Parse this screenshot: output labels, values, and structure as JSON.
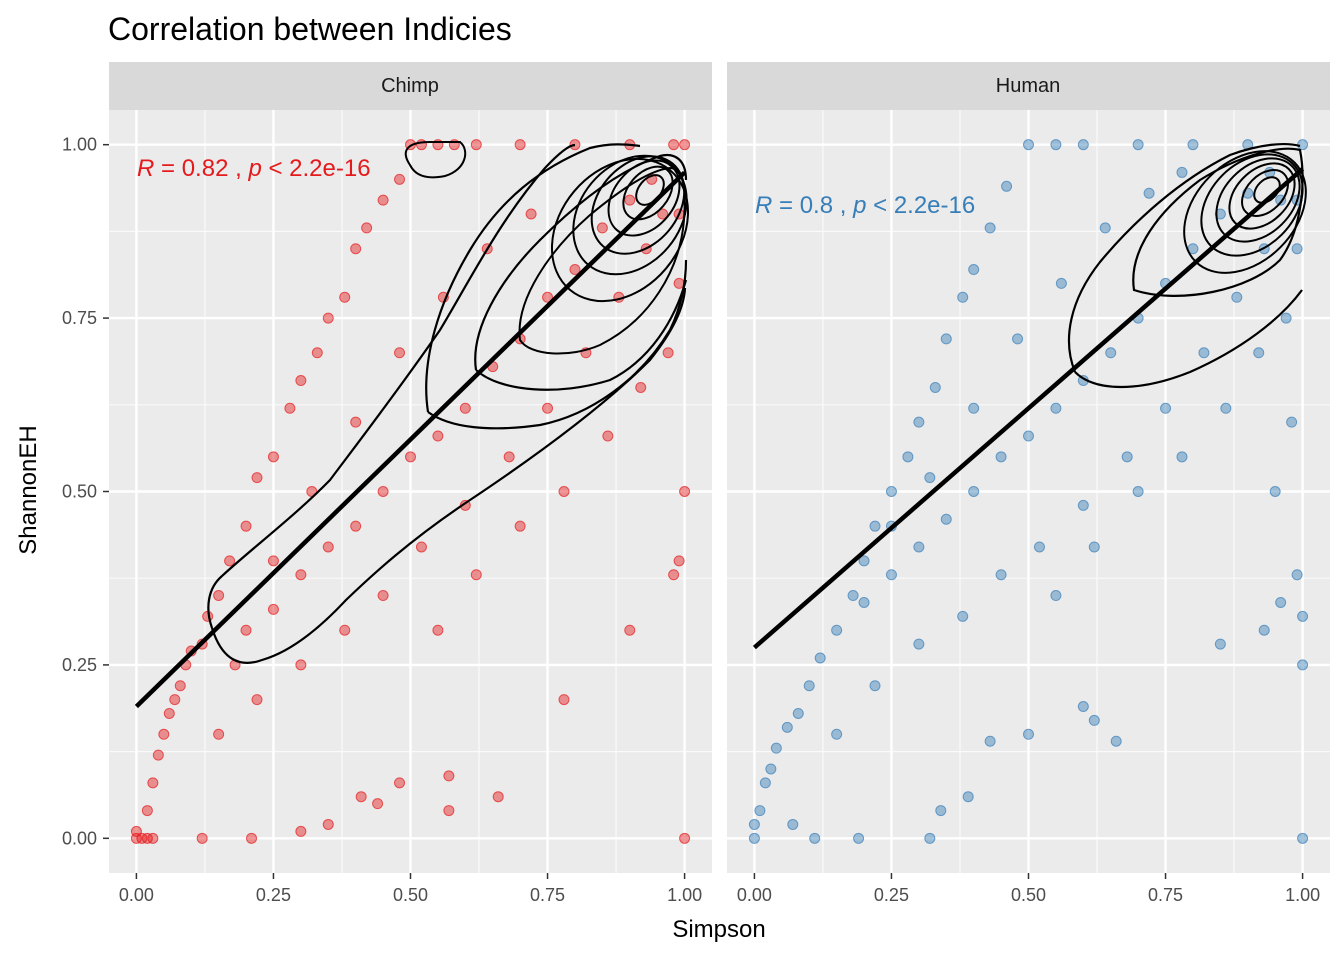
{
  "chart_data": {
    "type": "scatter",
    "title": "Correlation between Indicies",
    "xlabel": "Simpson",
    "ylabel": "ShannonEH",
    "xlim": [
      -0.05,
      1.05
    ],
    "ylim": [
      -0.05,
      1.05
    ],
    "xticks": [
      "0.00",
      "0.25",
      "0.50",
      "0.75",
      "1.00"
    ],
    "yticks": [
      "0.00",
      "0.25",
      "0.50",
      "0.75",
      "1.00"
    ],
    "grid": true,
    "facets": [
      {
        "name": "Chimp",
        "color": "#e41a1c",
        "stat_label": {
          "r_value": "0.82",
          "p_value": "2.2e-16"
        },
        "regression": {
          "intercept": 0.19,
          "slope": 0.77
        },
        "points": [
          [
            0.0,
            0.0
          ],
          [
            0.01,
            0.0
          ],
          [
            0.02,
            0.0
          ],
          [
            0.03,
            0.0
          ],
          [
            0.0,
            0.01
          ],
          [
            0.02,
            0.04
          ],
          [
            0.03,
            0.08
          ],
          [
            0.04,
            0.12
          ],
          [
            0.05,
            0.15
          ],
          [
            0.06,
            0.18
          ],
          [
            0.07,
            0.2
          ],
          [
            0.08,
            0.22
          ],
          [
            0.09,
            0.25
          ],
          [
            0.1,
            0.27
          ],
          [
            0.12,
            0.28
          ],
          [
            0.13,
            0.32
          ],
          [
            0.15,
            0.35
          ],
          [
            0.17,
            0.4
          ],
          [
            0.2,
            0.45
          ],
          [
            0.22,
            0.52
          ],
          [
            0.25,
            0.55
          ],
          [
            0.28,
            0.62
          ],
          [
            0.3,
            0.66
          ],
          [
            0.33,
            0.7
          ],
          [
            0.35,
            0.75
          ],
          [
            0.38,
            0.78
          ],
          [
            0.4,
            0.85
          ],
          [
            0.42,
            0.88
          ],
          [
            0.45,
            0.92
          ],
          [
            0.48,
            0.95
          ],
          [
            0.5,
            1.0
          ],
          [
            0.52,
            1.0
          ],
          [
            0.55,
            1.0
          ],
          [
            0.58,
            1.0
          ],
          [
            0.62,
            1.0
          ],
          [
            0.7,
            1.0
          ],
          [
            0.8,
            1.0
          ],
          [
            0.9,
            1.0
          ],
          [
            0.98,
            1.0
          ],
          [
            1.0,
            1.0
          ],
          [
            1.0,
            0.0
          ],
          [
            1.0,
            0.5
          ],
          [
            0.99,
            0.4
          ],
          [
            0.98,
            0.38
          ],
          [
            0.9,
            0.3
          ],
          [
            0.78,
            0.2
          ],
          [
            0.66,
            0.06
          ],
          [
            0.57,
            0.04
          ],
          [
            0.57,
            0.09
          ],
          [
            0.48,
            0.08
          ],
          [
            0.44,
            0.05
          ],
          [
            0.41,
            0.06
          ],
          [
            0.35,
            0.02
          ],
          [
            0.3,
            0.01
          ],
          [
            0.21,
            0.0
          ],
          [
            0.12,
            0.0
          ],
          [
            0.15,
            0.15
          ],
          [
            0.22,
            0.2
          ],
          [
            0.3,
            0.25
          ],
          [
            0.38,
            0.3
          ],
          [
            0.45,
            0.35
          ],
          [
            0.52,
            0.42
          ],
          [
            0.6,
            0.48
          ],
          [
            0.68,
            0.55
          ],
          [
            0.75,
            0.62
          ],
          [
            0.82,
            0.7
          ],
          [
            0.88,
            0.78
          ],
          [
            0.93,
            0.85
          ],
          [
            0.96,
            0.9
          ],
          [
            0.94,
            0.95
          ],
          [
            0.9,
            0.92
          ],
          [
            0.85,
            0.88
          ],
          [
            0.8,
            0.82
          ],
          [
            0.75,
            0.78
          ],
          [
            0.7,
            0.72
          ],
          [
            0.65,
            0.68
          ],
          [
            0.6,
            0.62
          ],
          [
            0.55,
            0.58
          ],
          [
            0.5,
            0.55
          ],
          [
            0.45,
            0.5
          ],
          [
            0.4,
            0.45
          ],
          [
            0.35,
            0.42
          ],
          [
            0.3,
            0.38
          ],
          [
            0.25,
            0.33
          ],
          [
            0.2,
            0.3
          ],
          [
            0.18,
            0.25
          ],
          [
            0.25,
            0.4
          ],
          [
            0.32,
            0.5
          ],
          [
            0.4,
            0.6
          ],
          [
            0.48,
            0.7
          ],
          [
            0.56,
            0.78
          ],
          [
            0.64,
            0.85
          ],
          [
            0.72,
            0.9
          ],
          [
            0.55,
            0.3
          ],
          [
            0.62,
            0.38
          ],
          [
            0.7,
            0.45
          ],
          [
            0.78,
            0.5
          ],
          [
            0.86,
            0.58
          ],
          [
            0.92,
            0.65
          ],
          [
            0.97,
            0.7
          ],
          [
            0.99,
            0.8
          ],
          [
            0.99,
            0.9
          ]
        ]
      },
      {
        "name": "Human",
        "color": "#377eb8",
        "stat_label": {
          "r_value": "0.8",
          "p_value": "2.2e-16"
        },
        "regression": {
          "intercept": 0.275,
          "slope": 0.69
        },
        "points": [
          [
            0.0,
            0.0
          ],
          [
            0.0,
            0.02
          ],
          [
            0.01,
            0.04
          ],
          [
            0.02,
            0.08
          ],
          [
            0.03,
            0.1
          ],
          [
            0.04,
            0.13
          ],
          [
            0.06,
            0.16
          ],
          [
            0.08,
            0.18
          ],
          [
            0.1,
            0.22
          ],
          [
            0.12,
            0.26
          ],
          [
            0.15,
            0.3
          ],
          [
            0.18,
            0.35
          ],
          [
            0.2,
            0.4
          ],
          [
            0.22,
            0.45
          ],
          [
            0.25,
            0.5
          ],
          [
            0.28,
            0.55
          ],
          [
            0.3,
            0.6
          ],
          [
            0.33,
            0.65
          ],
          [
            0.35,
            0.72
          ],
          [
            0.38,
            0.78
          ],
          [
            0.4,
            0.82
          ],
          [
            0.43,
            0.88
          ],
          [
            0.46,
            0.94
          ],
          [
            0.5,
            1.0
          ],
          [
            0.55,
            1.0
          ],
          [
            0.6,
            1.0
          ],
          [
            0.7,
            1.0
          ],
          [
            0.8,
            1.0
          ],
          [
            0.9,
            1.0
          ],
          [
            1.0,
            1.0
          ],
          [
            1.0,
            0.0
          ],
          [
            1.0,
            0.25
          ],
          [
            1.0,
            0.32
          ],
          [
            0.99,
            0.38
          ],
          [
            0.96,
            0.34
          ],
          [
            0.93,
            0.3
          ],
          [
            0.85,
            0.28
          ],
          [
            0.66,
            0.14
          ],
          [
            0.62,
            0.17
          ],
          [
            0.6,
            0.19
          ],
          [
            0.5,
            0.15
          ],
          [
            0.43,
            0.14
          ],
          [
            0.39,
            0.06
          ],
          [
            0.34,
            0.04
          ],
          [
            0.32,
            0.0
          ],
          [
            0.19,
            0.0
          ],
          [
            0.11,
            0.0
          ],
          [
            0.07,
            0.02
          ],
          [
            0.15,
            0.15
          ],
          [
            0.22,
            0.22
          ],
          [
            0.3,
            0.28
          ],
          [
            0.38,
            0.32
          ],
          [
            0.45,
            0.38
          ],
          [
            0.52,
            0.42
          ],
          [
            0.6,
            0.48
          ],
          [
            0.68,
            0.55
          ],
          [
            0.75,
            0.62
          ],
          [
            0.82,
            0.7
          ],
          [
            0.88,
            0.78
          ],
          [
            0.93,
            0.85
          ],
          [
            0.96,
            0.92
          ],
          [
            0.94,
            0.96
          ],
          [
            0.9,
            0.93
          ],
          [
            0.85,
            0.9
          ],
          [
            0.8,
            0.85
          ],
          [
            0.75,
            0.8
          ],
          [
            0.7,
            0.75
          ],
          [
            0.65,
            0.7
          ],
          [
            0.6,
            0.66
          ],
          [
            0.55,
            0.62
          ],
          [
            0.5,
            0.58
          ],
          [
            0.45,
            0.55
          ],
          [
            0.4,
            0.5
          ],
          [
            0.35,
            0.46
          ],
          [
            0.3,
            0.42
          ],
          [
            0.25,
            0.38
          ],
          [
            0.2,
            0.34
          ],
          [
            0.25,
            0.45
          ],
          [
            0.32,
            0.52
          ],
          [
            0.4,
            0.62
          ],
          [
            0.48,
            0.72
          ],
          [
            0.56,
            0.8
          ],
          [
            0.64,
            0.88
          ],
          [
            0.72,
            0.93
          ],
          [
            0.78,
            0.96
          ],
          [
            0.55,
            0.35
          ],
          [
            0.62,
            0.42
          ],
          [
            0.7,
            0.5
          ],
          [
            0.78,
            0.55
          ],
          [
            0.86,
            0.62
          ],
          [
            0.92,
            0.7
          ],
          [
            0.97,
            0.75
          ],
          [
            0.99,
            0.85
          ],
          [
            0.99,
            0.92
          ],
          [
            0.98,
            0.6
          ],
          [
            0.95,
            0.5
          ]
        ]
      }
    ]
  }
}
